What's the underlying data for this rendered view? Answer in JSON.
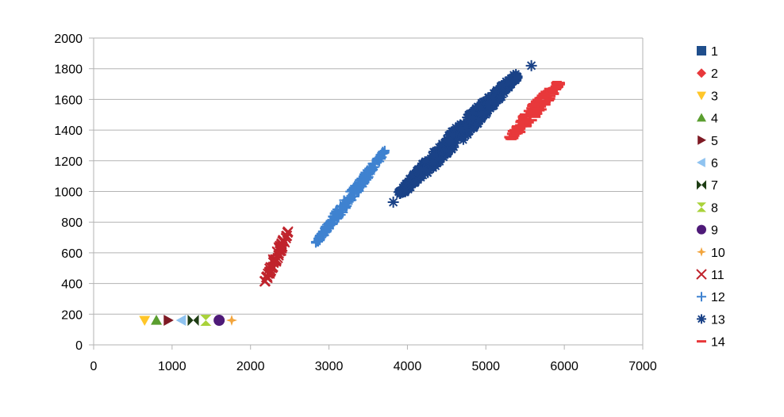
{
  "chart_data": {
    "type": "scatter",
    "xlim": [
      0,
      7000
    ],
    "ylim": [
      0,
      2000
    ],
    "x_ticks": [
      0,
      1000,
      2000,
      3000,
      4000,
      5000,
      6000,
      7000
    ],
    "y_ticks": [
      0,
      200,
      400,
      600,
      800,
      1000,
      1200,
      1400,
      1600,
      1800,
      2000
    ],
    "grid": "horizontal",
    "legend_position": "right",
    "series": [
      {
        "name": "1",
        "marker": "square",
        "color": "#1F4E8C",
        "points": []
      },
      {
        "name": "2",
        "marker": "diamond",
        "color": "#E8383B",
        "points": []
      },
      {
        "name": "3",
        "marker": "triangle-down",
        "color": "#FFC629",
        "points": [
          [
            650,
            160
          ]
        ]
      },
      {
        "name": "4",
        "marker": "triangle-up",
        "color": "#5A9E2F",
        "points": [
          [
            800,
            160
          ]
        ]
      },
      {
        "name": "5",
        "marker": "triangle-right",
        "color": "#7E1A24",
        "points": [
          [
            950,
            160
          ]
        ]
      },
      {
        "name": "6",
        "marker": "triangle-left",
        "color": "#8FC3F0",
        "points": [
          [
            1120,
            160
          ]
        ]
      },
      {
        "name": "7",
        "marker": "bowtie",
        "color": "#1E3D14",
        "points": [
          [
            1270,
            160
          ]
        ]
      },
      {
        "name": "8",
        "marker": "hourglass",
        "color": "#A9D23A",
        "points": [
          [
            1430,
            160
          ]
        ]
      },
      {
        "name": "9",
        "marker": "circle",
        "color": "#4E1A78",
        "points": [
          [
            1600,
            160
          ]
        ]
      },
      {
        "name": "10",
        "marker": "star4",
        "color": "#F2A43C",
        "points": [
          [
            1760,
            160
          ]
        ]
      },
      {
        "name": "11",
        "marker": "x",
        "color": "#C0232C",
        "cluster": {
          "start": [
            2180,
            410
          ],
          "end": [
            2480,
            740
          ],
          "halfwidth": 25,
          "count": 60
        }
      },
      {
        "name": "12",
        "marker": "plus",
        "color": "#3F82D0",
        "cluster": {
          "start": [
            2830,
            660
          ],
          "end": [
            3720,
            1270
          ],
          "halfwidth": 45,
          "count": 220
        }
      },
      {
        "name": "13",
        "marker": "asterisk",
        "color": "#1A4287",
        "cluster": {
          "start": [
            3900,
            980
          ],
          "end": [
            5400,
            1760
          ],
          "halfwidth": 95,
          "count": 500
        },
        "extra_points": [
          [
            3820,
            930
          ],
          [
            5580,
            1820
          ]
        ]
      },
      {
        "name": "14",
        "marker": "dash",
        "color": "#E8383B",
        "cluster": {
          "start": [
            5300,
            1340
          ],
          "end": [
            5950,
            1720
          ],
          "halfwidth": 70,
          "count": 160
        }
      }
    ]
  }
}
